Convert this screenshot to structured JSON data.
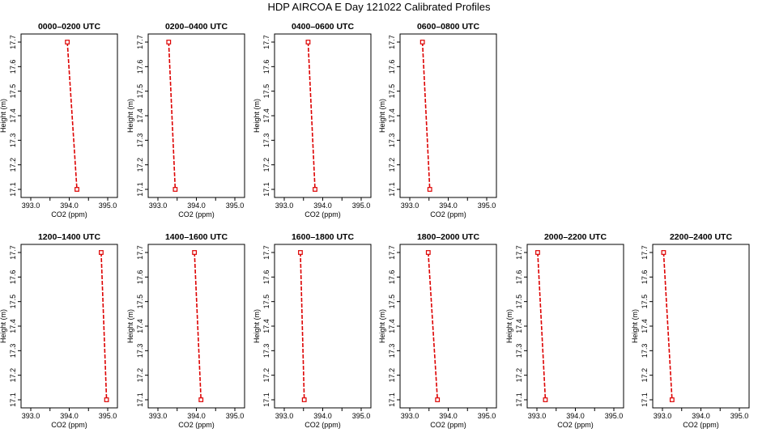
{
  "title": "HDP AIRCOA E  Day 121022  Calibrated Profiles",
  "colors": {
    "profile": "#dd0000",
    "axis": "#000000"
  },
  "chart_data": [
    {
      "type": "line",
      "title": "0000–0200 UTC",
      "xlabel": "CO2 (ppm)",
      "ylabel": "Height (m)",
      "xlim": [
        393.0,
        395.0
      ],
      "ylim": [
        17.1,
        17.7
      ],
      "xticks": [
        "393.0",
        "394.0",
        "395.0"
      ],
      "yticks": [
        "17.1",
        "17.2",
        "17.3",
        "17.4",
        "17.5",
        "17.6",
        "17.7"
      ],
      "series": [
        {
          "x": [
            393.95,
            394.2
          ],
          "y": [
            17.7,
            17.1
          ]
        }
      ]
    },
    {
      "type": "line",
      "title": "0200–0400 UTC",
      "xlabel": "CO2 (ppm)",
      "ylabel": "Height (m)",
      "xlim": [
        393.0,
        395.0
      ],
      "ylim": [
        17.1,
        17.7
      ],
      "xticks": [
        "393.0",
        "394.0",
        "395.0"
      ],
      "yticks": [
        "17.1",
        "17.2",
        "17.3",
        "17.4",
        "17.5",
        "17.6",
        "17.7"
      ],
      "series": [
        {
          "x": [
            393.28,
            393.45
          ],
          "y": [
            17.7,
            17.1
          ]
        }
      ]
    },
    {
      "type": "line",
      "title": "0400–0600 UTC",
      "xlabel": "CO2 (ppm)",
      "ylabel": "Height (m)",
      "xlim": [
        393.0,
        395.0
      ],
      "ylim": [
        17.1,
        17.7
      ],
      "xticks": [
        "393.0",
        "394.0",
        "395.0"
      ],
      "yticks": [
        "17.1",
        "17.2",
        "17.3",
        "17.4",
        "17.5",
        "17.6",
        "17.7"
      ],
      "series": [
        {
          "x": [
            393.62,
            393.8
          ],
          "y": [
            17.7,
            17.1
          ]
        }
      ]
    },
    {
      "type": "line",
      "title": "0600–0800 UTC",
      "xlabel": "CO2 (ppm)",
      "ylabel": "Height (m)",
      "xlim": [
        393.0,
        395.0
      ],
      "ylim": [
        17.1,
        17.7
      ],
      "xticks": [
        "393.0",
        "394.0",
        "395.0"
      ],
      "yticks": [
        "17.1",
        "17.2",
        "17.3",
        "17.4",
        "17.5",
        "17.6",
        "17.7"
      ],
      "series": [
        {
          "x": [
            393.33,
            393.52
          ],
          "y": [
            17.7,
            17.1
          ]
        }
      ]
    },
    {
      "type": "line",
      "title": "1200–1400 UTC",
      "xlabel": "CO2 (ppm)",
      "ylabel": "Height (m)",
      "xlim": [
        393.0,
        395.0
      ],
      "ylim": [
        17.1,
        17.7
      ],
      "xticks": [
        "393.0",
        "394.0",
        "395.0"
      ],
      "yticks": [
        "17.1",
        "17.2",
        "17.3",
        "17.4",
        "17.5",
        "17.6",
        "17.7"
      ],
      "series": [
        {
          "x": [
            394.83,
            394.97
          ],
          "y": [
            17.7,
            17.1
          ]
        }
      ]
    },
    {
      "type": "line",
      "title": "1400–1600 UTC",
      "xlabel": "CO2 (ppm)",
      "ylabel": "Height (m)",
      "xlim": [
        393.0,
        395.0
      ],
      "ylim": [
        17.1,
        17.7
      ],
      "xticks": [
        "393.0",
        "394.0",
        "395.0"
      ],
      "yticks": [
        "17.1",
        "17.2",
        "17.3",
        "17.4",
        "17.5",
        "17.6",
        "17.7"
      ],
      "series": [
        {
          "x": [
            393.95,
            394.12
          ],
          "y": [
            17.7,
            17.1
          ]
        }
      ]
    },
    {
      "type": "line",
      "title": "1600–1800 UTC",
      "xlabel": "CO2 (ppm)",
      "ylabel": "Height (m)",
      "xlim": [
        393.0,
        395.0
      ],
      "ylim": [
        17.1,
        17.7
      ],
      "xticks": [
        "393.0",
        "394.0",
        "395.0"
      ],
      "yticks": [
        "17.1",
        "17.2",
        "17.3",
        "17.4",
        "17.5",
        "17.6",
        "17.7"
      ],
      "series": [
        {
          "x": [
            393.42,
            393.52
          ],
          "y": [
            17.7,
            17.1
          ]
        }
      ]
    },
    {
      "type": "line",
      "title": "1800–2000 UTC",
      "xlabel": "CO2 (ppm)",
      "ylabel": "Height (m)",
      "xlim": [
        393.0,
        395.0
      ],
      "ylim": [
        17.1,
        17.7
      ],
      "xticks": [
        "393.0",
        "394.0",
        "395.0"
      ],
      "yticks": [
        "17.1",
        "17.2",
        "17.3",
        "17.4",
        "17.5",
        "17.6",
        "17.7"
      ],
      "series": [
        {
          "x": [
            393.48,
            393.72
          ],
          "y": [
            17.7,
            17.1
          ]
        }
      ]
    },
    {
      "type": "line",
      "title": "2000–2200 UTC",
      "xlabel": "CO2 (ppm)",
      "ylabel": "Height (m)",
      "xlim": [
        393.0,
        395.0
      ],
      "ylim": [
        17.1,
        17.7
      ],
      "xticks": [
        "393.0",
        "394.0",
        "395.0"
      ],
      "yticks": [
        "17.1",
        "17.2",
        "17.3",
        "17.4",
        "17.5",
        "17.6",
        "17.7"
      ],
      "series": [
        {
          "x": [
            393.02,
            393.22
          ],
          "y": [
            17.7,
            17.1
          ]
        }
      ]
    },
    {
      "type": "line",
      "title": "2200–2400 UTC",
      "xlabel": "CO2 (ppm)",
      "ylabel": "Height (m)",
      "xlim": [
        393.0,
        395.0
      ],
      "ylim": [
        17.1,
        17.7
      ],
      "xticks": [
        "393.0",
        "394.0",
        "395.0"
      ],
      "yticks": [
        "17.1",
        "17.2",
        "17.3",
        "17.4",
        "17.5",
        "17.6",
        "17.7"
      ],
      "series": [
        {
          "x": [
            393.03,
            393.25
          ],
          "y": [
            17.7,
            17.1
          ]
        }
      ]
    }
  ]
}
